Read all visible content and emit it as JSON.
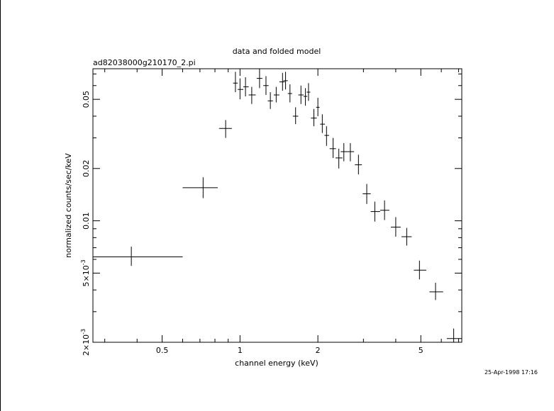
{
  "chart_data": {
    "type": "scatter",
    "title": "data and folded model",
    "subtitle": "ad82038000g210170_2.pi",
    "xlabel": "channel energy (keV)",
    "ylabel": "normalized counts/sec/keV",
    "timestamp": "25-Apr-1998 17:16",
    "x_scale": "log",
    "y_scale": "log",
    "xlim": [
      0.27,
      7.2
    ],
    "ylim": [
      0.002,
      0.075
    ],
    "x_ticks": [
      {
        "value": 0.5,
        "label": "0.5"
      },
      {
        "value": 1,
        "label": "1"
      },
      {
        "value": 2,
        "label": "2"
      },
      {
        "value": 5,
        "label": "5"
      }
    ],
    "y_ticks": [
      {
        "value": 0.002,
        "mant": "2",
        "exp": "-3"
      },
      {
        "value": 0.005,
        "mant": "5",
        "exp": "-3"
      },
      {
        "value": 0.01,
        "label": "0.01"
      },
      {
        "value": 0.02,
        "label": "0.02"
      },
      {
        "value": 0.05,
        "label": "0.05"
      }
    ],
    "grid": false,
    "points": [
      {
        "x": 0.38,
        "xlo": 0.27,
        "xhi": 0.6,
        "y": 0.0062,
        "ylo": 0.0055,
        "yhi": 0.0071
      },
      {
        "x": 0.72,
        "xlo": 0.6,
        "xhi": 0.82,
        "y": 0.0155,
        "ylo": 0.0135,
        "yhi": 0.0178
      },
      {
        "x": 0.88,
        "xlo": 0.83,
        "xhi": 0.93,
        "y": 0.034,
        "ylo": 0.03,
        "yhi": 0.038
      },
      {
        "x": 0.96,
        "xlo": 0.94,
        "xhi": 0.98,
        "y": 0.062,
        "ylo": 0.055,
        "yhi": 0.072
      },
      {
        "x": 1.0,
        "xlo": 0.98,
        "xhi": 1.03,
        "y": 0.057,
        "ylo": 0.05,
        "yhi": 0.066
      },
      {
        "x": 1.05,
        "xlo": 1.03,
        "xhi": 1.08,
        "y": 0.059,
        "ylo": 0.052,
        "yhi": 0.067
      },
      {
        "x": 1.11,
        "xlo": 1.08,
        "xhi": 1.15,
        "y": 0.053,
        "ylo": 0.047,
        "yhi": 0.059
      },
      {
        "x": 1.19,
        "xlo": 1.16,
        "xhi": 1.22,
        "y": 0.066,
        "ylo": 0.058,
        "yhi": 0.075
      },
      {
        "x": 1.26,
        "xlo": 1.23,
        "xhi": 1.29,
        "y": 0.06,
        "ylo": 0.053,
        "yhi": 0.068
      },
      {
        "x": 1.31,
        "xlo": 1.28,
        "xhi": 1.34,
        "y": 0.049,
        "ylo": 0.044,
        "yhi": 0.055
      },
      {
        "x": 1.38,
        "xlo": 1.35,
        "xhi": 1.42,
        "y": 0.053,
        "ylo": 0.048,
        "yhi": 0.059
      },
      {
        "x": 1.46,
        "xlo": 1.42,
        "xhi": 1.49,
        "y": 0.063,
        "ylo": 0.056,
        "yhi": 0.071
      },
      {
        "x": 1.5,
        "xlo": 1.47,
        "xhi": 1.53,
        "y": 0.064,
        "ylo": 0.057,
        "yhi": 0.072
      },
      {
        "x": 1.56,
        "xlo": 1.53,
        "xhi": 1.59,
        "y": 0.054,
        "ylo": 0.048,
        "yhi": 0.061
      },
      {
        "x": 1.64,
        "xlo": 1.6,
        "xhi": 1.68,
        "y": 0.04,
        "ylo": 0.036,
        "yhi": 0.045
      },
      {
        "x": 1.72,
        "xlo": 1.68,
        "xhi": 1.76,
        "y": 0.053,
        "ylo": 0.047,
        "yhi": 0.06
      },
      {
        "x": 1.79,
        "xlo": 1.76,
        "xhi": 1.82,
        "y": 0.052,
        "ylo": 0.046,
        "yhi": 0.058
      },
      {
        "x": 1.84,
        "xlo": 1.81,
        "xhi": 1.87,
        "y": 0.055,
        "ylo": 0.049,
        "yhi": 0.062
      },
      {
        "x": 1.93,
        "xlo": 1.88,
        "xhi": 1.98,
        "y": 0.039,
        "ylo": 0.035,
        "yhi": 0.044
      },
      {
        "x": 2.0,
        "xlo": 1.97,
        "xhi": 2.03,
        "y": 0.045,
        "ylo": 0.04,
        "yhi": 0.051
      },
      {
        "x": 2.08,
        "xlo": 2.04,
        "xhi": 2.13,
        "y": 0.036,
        "ylo": 0.032,
        "yhi": 0.041
      },
      {
        "x": 2.16,
        "xlo": 2.12,
        "xhi": 2.21,
        "y": 0.031,
        "ylo": 0.027,
        "yhi": 0.035
      },
      {
        "x": 2.29,
        "xlo": 2.22,
        "xhi": 2.35,
        "y": 0.026,
        "ylo": 0.023,
        "yhi": 0.03
      },
      {
        "x": 2.41,
        "xlo": 2.34,
        "xhi": 2.49,
        "y": 0.023,
        "ylo": 0.02,
        "yhi": 0.026
      },
      {
        "x": 2.52,
        "xlo": 2.45,
        "xhi": 2.6,
        "y": 0.025,
        "ylo": 0.022,
        "yhi": 0.028
      },
      {
        "x": 2.67,
        "xlo": 2.58,
        "xhi": 2.76,
        "y": 0.025,
        "ylo": 0.022,
        "yhi": 0.028
      },
      {
        "x": 2.87,
        "xlo": 2.78,
        "xhi": 2.96,
        "y": 0.021,
        "ylo": 0.0185,
        "yhi": 0.024
      },
      {
        "x": 3.09,
        "xlo": 2.98,
        "xhi": 3.2,
        "y": 0.0143,
        "ylo": 0.0125,
        "yhi": 0.0163
      },
      {
        "x": 3.32,
        "xlo": 3.2,
        "xhi": 3.48,
        "y": 0.0113,
        "ylo": 0.0099,
        "yhi": 0.0129
      },
      {
        "x": 3.62,
        "xlo": 3.48,
        "xhi": 3.78,
        "y": 0.0115,
        "ylo": 0.0101,
        "yhi": 0.0131
      },
      {
        "x": 4.0,
        "xlo": 3.83,
        "xhi": 4.18,
        "y": 0.0092,
        "ylo": 0.0081,
        "yhi": 0.0105
      },
      {
        "x": 4.41,
        "xlo": 4.21,
        "xhi": 4.61,
        "y": 0.0081,
        "ylo": 0.0072,
        "yhi": 0.0091
      },
      {
        "x": 4.94,
        "xlo": 4.7,
        "xhi": 5.25,
        "y": 0.0052,
        "ylo": 0.0046,
        "yhi": 0.0059
      },
      {
        "x": 5.7,
        "xlo": 5.4,
        "xhi": 6.1,
        "y": 0.0039,
        "ylo": 0.0035,
        "yhi": 0.0044
      },
      {
        "x": 6.7,
        "xlo": 6.3,
        "xhi": 7.2,
        "y": 0.0021,
        "ylo": 0.0019,
        "yhi": 0.0024
      }
    ]
  }
}
